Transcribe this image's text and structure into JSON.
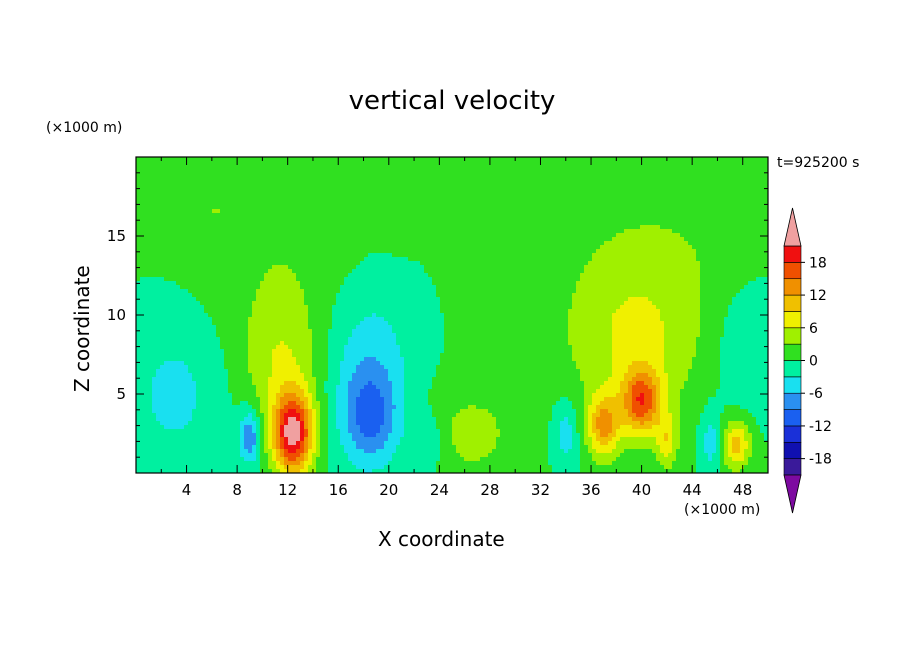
{
  "chart_data": {
    "type": "heatmap",
    "title": "vertical velocity",
    "xlabel": "X coordinate",
    "ylabel": "Z coordinate",
    "x_unit_label": "(×1000 m)",
    "y_unit_label": "(×1000 m)",
    "annotation": "t=925200 s",
    "xlim": [
      0,
      50
    ],
    "ylim": [
      0,
      20
    ],
    "x_ticks": [
      "4",
      "8",
      "12",
      "16",
      "20",
      "24",
      "28",
      "32",
      "36",
      "40",
      "44",
      "48"
    ],
    "y_ticks": [
      "5",
      "10",
      "15"
    ],
    "colorbar": {
      "tick_labels": [
        "18",
        "12",
        "6",
        "0",
        "-6",
        "-12",
        "-18"
      ],
      "levels": [
        -21,
        -18,
        -15,
        -12,
        -9,
        -6,
        -3,
        0,
        3,
        6,
        9,
        12,
        15,
        18,
        21
      ],
      "colors": [
        "#7d0aa0",
        "#3a1a9a",
        "#1010b0",
        "#1a30d8",
        "#1a60f0",
        "#2a90f0",
        "#19e0f0",
        "#00f0a0",
        "#30e020",
        "#a0f000",
        "#f0f000",
        "#f0c000",
        "#f09000",
        "#f05000",
        "#f01010",
        "#f0a0a0"
      ],
      "extend_low_color": "#7d0aa0",
      "extend_high_color": "#f0a0a0"
    },
    "grid": false,
    "features": [
      {
        "x": 12.4,
        "z": 2.5,
        "amp": 22,
        "sx": 1.1,
        "sz": 1.8
      },
      {
        "x": 11.5,
        "z": 7.0,
        "amp": 5.5,
        "sx": 2.2,
        "sz": 3.0
      },
      {
        "x": 11.5,
        "z": 14.0,
        "amp": 2.2,
        "sx": 4.5,
        "sz": 4.0
      },
      {
        "x": 40.0,
        "z": 4.5,
        "amp": 15,
        "sx": 1.1,
        "sz": 1.5
      },
      {
        "x": 37.0,
        "z": 3.0,
        "amp": 12,
        "sx": 0.9,
        "sz": 1.4
      },
      {
        "x": 39.5,
        "z": 8.5,
        "amp": 6,
        "sx": 4.0,
        "sz": 3.5
      },
      {
        "x": 41.5,
        "z": 14.5,
        "amp": 2.2,
        "sx": 6.0,
        "sz": 3.5
      },
      {
        "x": 47.5,
        "z": 1.8,
        "amp": 10,
        "sx": 0.8,
        "sz": 1.1
      },
      {
        "x": 42.0,
        "z": 2.0,
        "amp": 7,
        "sx": 0.6,
        "sz": 1.2
      },
      {
        "x": 18.5,
        "z": 3.5,
        "amp": -9,
        "sx": 1.6,
        "sz": 2.2
      },
      {
        "x": 18.5,
        "z": 7.5,
        "amp": -4.5,
        "sx": 2.5,
        "sz": 3.5
      },
      {
        "x": 9.0,
        "z": 2.3,
        "amp": -9,
        "sx": 0.6,
        "sz": 1.2
      },
      {
        "x": 3.0,
        "z": 5.0,
        "amp": -4,
        "sx": 2.8,
        "sz": 3.5
      },
      {
        "x": 48.5,
        "z": 8.0,
        "amp": -3.5,
        "sx": 2.0,
        "sz": 3.0
      },
      {
        "x": 26.5,
        "z": 2.5,
        "amp": 4,
        "sx": 2.5,
        "sz": 2.0
      },
      {
        "x": 28.5,
        "z": 14.0,
        "amp": 2.0,
        "sx": 1.0,
        "sz": 1.2
      },
      {
        "x": 21.0,
        "z": 15.5,
        "amp": 2.0,
        "sx": 1.0,
        "sz": 0.8
      },
      {
        "x": 6.0,
        "z": 16.5,
        "amp": 2.0,
        "sx": 1.5,
        "sz": 0.4
      },
      {
        "x": 34.0,
        "z": 2.5,
        "amp": -5,
        "sx": 0.7,
        "sz": 1.5
      },
      {
        "x": 45.5,
        "z": 2.0,
        "amp": -5,
        "sx": 0.6,
        "sz": 1.4
      },
      {
        "x": 23.0,
        "z": 2.0,
        "amp": -4,
        "sx": 1.0,
        "sz": 1.3
      }
    ]
  }
}
